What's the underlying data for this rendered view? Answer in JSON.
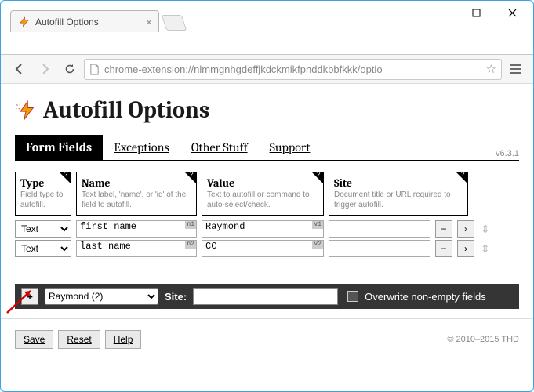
{
  "window": {
    "tab_title": "Autofill Options",
    "url": "chrome-extension://nlmmgnhgdeffjkdckmikfpnddkbbfkkk/optio"
  },
  "page": {
    "title": "Autofill Options",
    "version": "v6.3.1",
    "tabs": {
      "form_fields": "Form Fields",
      "exceptions": "Exceptions",
      "other_stuff": "Other Stuff",
      "support": "Support"
    }
  },
  "columns": {
    "type": {
      "title": "Type",
      "desc": "Field type to autofill."
    },
    "name": {
      "title": "Name",
      "desc": "Text label, 'name', or 'id' of the field to autofill."
    },
    "value": {
      "title": "Value",
      "desc": "Text to autofill or command to auto-select/check."
    },
    "site": {
      "title": "Site",
      "desc": "Document title or URL required to trigger autofill."
    }
  },
  "rows": [
    {
      "type": "Text",
      "name": "first name",
      "name_badge": "n1",
      "value": "Raymond",
      "value_badge": "v1",
      "site": ""
    },
    {
      "type": "Text",
      "name": "last name",
      "name_badge": "n2",
      "value": "CC",
      "value_badge": "v2",
      "site": ""
    }
  ],
  "bottom": {
    "profile": "Raymond (2)",
    "site_label": "Site:",
    "site_value": "",
    "overwrite_label": "Overwrite non-empty fields"
  },
  "footer": {
    "save": "Save",
    "reset": "Reset",
    "help": "Help",
    "copyright": "© 2010–2015 THD"
  },
  "colors": {
    "window_border": "#3aa4e0",
    "tab_active_bg": "#000000",
    "bottom_bar_bg": "#353535",
    "bolt_fill": "#f0a000",
    "bolt_stroke": "#c03030",
    "arrow": "#d40000"
  }
}
